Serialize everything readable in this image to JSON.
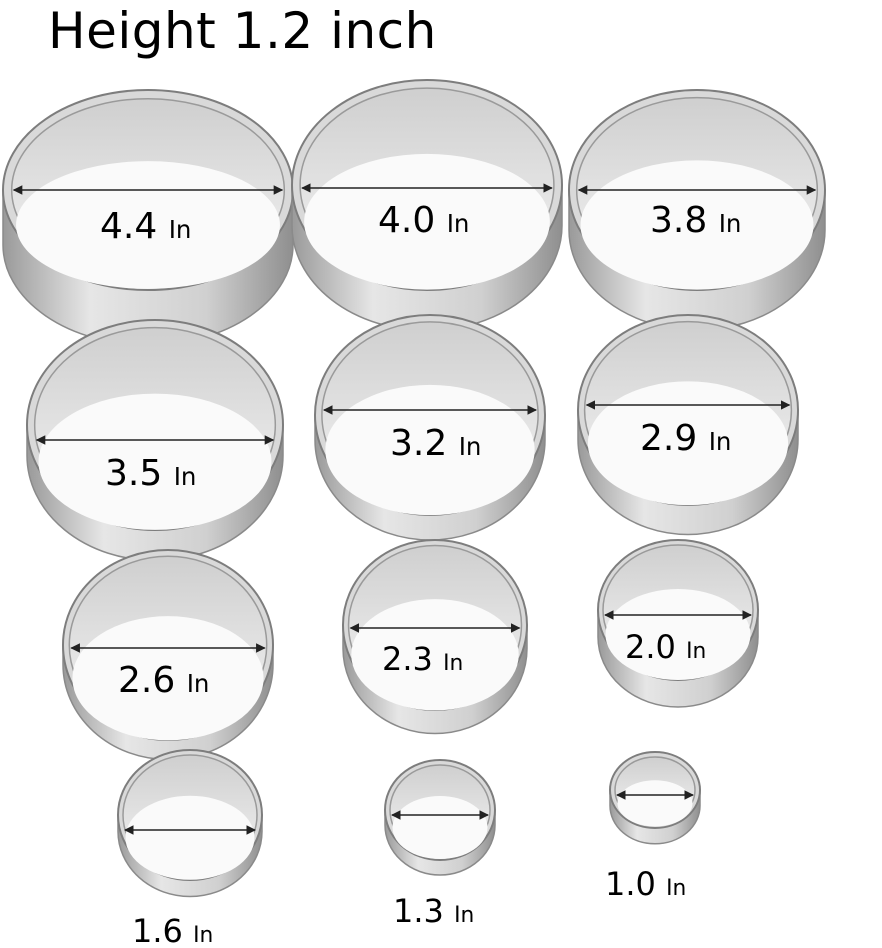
{
  "title": "Height 1.2 inch",
  "unit": "In",
  "rings": [
    {
      "size": "4.4"
    },
    {
      "size": "4.0"
    },
    {
      "size": "3.8"
    },
    {
      "size": "3.5"
    },
    {
      "size": "3.2"
    },
    {
      "size": "2.9"
    },
    {
      "size": "2.6"
    },
    {
      "size": "2.3"
    },
    {
      "size": "2.0"
    },
    {
      "size": "1.6"
    },
    {
      "size": "1.3"
    },
    {
      "size": "1.0"
    }
  ],
  "colors": {
    "steel_light": "#e4e4e4",
    "steel_mid": "#bdbdbd",
    "steel_dark": "#8a8a8a",
    "text": "#000000"
  }
}
